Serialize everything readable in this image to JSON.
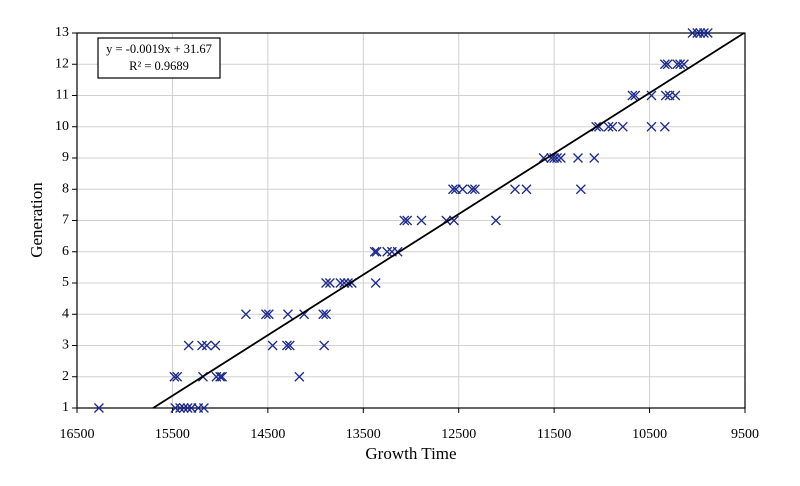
{
  "chart_data": {
    "type": "scatter",
    "x_label": "Growth Time",
    "y_label": "Generation",
    "equation": "y = -0.0019x + 31.67",
    "r2_label": "R² = 0.9689",
    "color": "#1c2a8c",
    "trendline": true,
    "grid": true,
    "x_reversed": true,
    "xlim": [
      16500,
      9500
    ],
    "ylim": [
      1,
      13
    ],
    "xticks": [
      16500,
      15500,
      14500,
      13500,
      12500,
      11500,
      10500,
      9500
    ],
    "yticks": [
      1,
      2,
      3,
      4,
      5,
      6,
      7,
      8,
      9,
      10,
      11,
      12,
      13
    ],
    "x": [
      16270,
      15470,
      15420,
      15380,
      15340,
      15300,
      15230,
      15170,
      15480,
      15450,
      15180,
      15040,
      15000,
      14980,
      14170,
      15330,
      15190,
      15140,
      15050,
      14450,
      14300,
      14270,
      13910,
      14730,
      14520,
      14490,
      14290,
      14120,
      13920,
      13890,
      13890,
      13850,
      13740,
      13700,
      13660,
      13620,
      13370,
      13380,
      13360,
      13250,
      13200,
      13140,
      13070,
      13040,
      12890,
      12630,
      12550,
      12110,
      12560,
      12530,
      12460,
      12360,
      12330,
      11910,
      11790,
      11220,
      11610,
      11530,
      11500,
      11470,
      11430,
      11250,
      11080,
      11060,
      11030,
      10930,
      10890,
      10780,
      10480,
      10340,
      10680,
      10650,
      10480,
      10330,
      10290,
      10230,
      10340,
      10310,
      10210,
      10180,
      10140,
      10050,
      10000,
      9970,
      9930,
      9890
    ],
    "values": [
      1,
      1,
      1,
      1,
      1,
      1,
      1,
      1,
      2,
      2,
      2,
      2,
      2,
      2,
      2,
      3,
      3,
      3,
      3,
      3,
      3,
      3,
      3,
      4,
      4,
      4,
      4,
      4,
      4,
      4,
      5,
      5,
      5,
      5,
      5,
      5,
      5,
      6,
      6,
      6,
      6,
      6,
      7,
      7,
      7,
      7,
      7,
      7,
      8,
      8,
      8,
      8,
      8,
      8,
      8,
      8,
      9,
      9,
      9,
      9,
      9,
      9,
      9,
      10,
      10,
      10,
      10,
      10,
      10,
      10,
      11,
      11,
      11,
      11,
      11,
      11,
      12,
      12,
      12,
      12,
      12,
      13,
      13,
      13,
      13,
      13
    ]
  }
}
